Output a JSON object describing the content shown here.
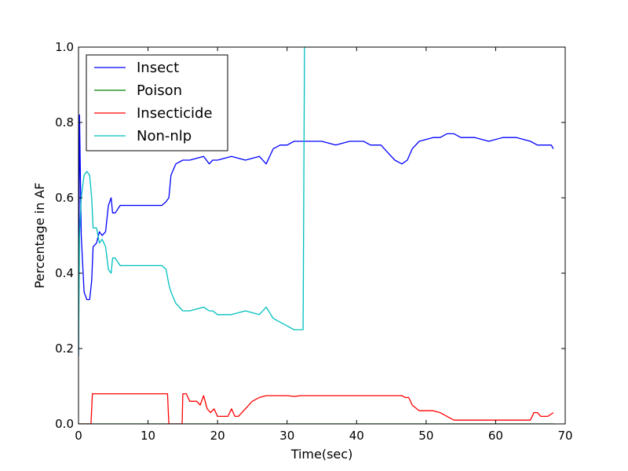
{
  "chart_data": {
    "type": "line",
    "title": "",
    "xlabel": "Time(sec)",
    "ylabel": "Percentage in AF",
    "xlim": [
      0,
      70
    ],
    "ylim": [
      0,
      1.0
    ],
    "xticks": [
      0,
      10,
      20,
      30,
      40,
      50,
      60,
      70
    ],
    "yticks": [
      0.0,
      0.2,
      0.4,
      0.6,
      0.8,
      1.0
    ],
    "xtick_labels": [
      "0",
      "10",
      "20",
      "30",
      "40",
      "50",
      "60",
      "70"
    ],
    "ytick_labels": [
      "0.0",
      "0.2",
      "0.4",
      "0.6",
      "0.8",
      "1.0"
    ],
    "grid": false,
    "legend_position": "top-left",
    "series": [
      {
        "name": "Insect",
        "color": "#0000ff",
        "points": [
          [
            0,
            0.18
          ],
          [
            0.15,
            0.82
          ],
          [
            0.4,
            0.5
          ],
          [
            0.8,
            0.35
          ],
          [
            1.2,
            0.33
          ],
          [
            1.6,
            0.33
          ],
          [
            1.9,
            0.38
          ],
          [
            2.1,
            0.47
          ],
          [
            2.6,
            0.48
          ],
          [
            3.0,
            0.51
          ],
          [
            3.4,
            0.5
          ],
          [
            3.9,
            0.51
          ],
          [
            4.3,
            0.58
          ],
          [
            4.7,
            0.6
          ],
          [
            4.9,
            0.56
          ],
          [
            5.3,
            0.56
          ],
          [
            6.0,
            0.58
          ],
          [
            8.0,
            0.58
          ],
          [
            10.0,
            0.58
          ],
          [
            11.0,
            0.58
          ],
          [
            12.0,
            0.58
          ],
          [
            12.6,
            0.59
          ],
          [
            13.0,
            0.6
          ],
          [
            13.3,
            0.66
          ],
          [
            14.0,
            0.69
          ],
          [
            15.0,
            0.7
          ],
          [
            16.0,
            0.7
          ],
          [
            18.0,
            0.71
          ],
          [
            18.8,
            0.69
          ],
          [
            19.3,
            0.7
          ],
          [
            20.0,
            0.7
          ],
          [
            22.0,
            0.71
          ],
          [
            24.0,
            0.7
          ],
          [
            26.0,
            0.71
          ],
          [
            27.0,
            0.69
          ],
          [
            28.0,
            0.73
          ],
          [
            29.0,
            0.74
          ],
          [
            30.0,
            0.74
          ],
          [
            31.0,
            0.75
          ],
          [
            33.0,
            0.75
          ],
          [
            35.0,
            0.75
          ],
          [
            37.0,
            0.74
          ],
          [
            39.0,
            0.75
          ],
          [
            41.0,
            0.75
          ],
          [
            42.0,
            0.74
          ],
          [
            43.5,
            0.74
          ],
          [
            44.5,
            0.72
          ],
          [
            45.5,
            0.7
          ],
          [
            46.5,
            0.69
          ],
          [
            47.3,
            0.7
          ],
          [
            48.0,
            0.73
          ],
          [
            49.0,
            0.75
          ],
          [
            51.0,
            0.76
          ],
          [
            52.0,
            0.76
          ],
          [
            53.0,
            0.77
          ],
          [
            54.0,
            0.77
          ],
          [
            55.0,
            0.76
          ],
          [
            57.0,
            0.76
          ],
          [
            59.0,
            0.75
          ],
          [
            61.0,
            0.76
          ],
          [
            63.0,
            0.76
          ],
          [
            65.0,
            0.75
          ],
          [
            66.0,
            0.74
          ],
          [
            67.0,
            0.74
          ],
          [
            68.0,
            0.74
          ],
          [
            68.3,
            0.73
          ]
        ]
      },
      {
        "name": "Poison",
        "color": "#008000",
        "points": [
          [
            0,
            0.0
          ],
          [
            68.3,
            0.0
          ]
        ]
      },
      {
        "name": "Insecticide",
        "color": "#ff0000",
        "points": [
          [
            0,
            0.0
          ],
          [
            1.8,
            0.0
          ],
          [
            2.0,
            0.08
          ],
          [
            5.0,
            0.08
          ],
          [
            10.0,
            0.08
          ],
          [
            12.8,
            0.08
          ],
          [
            13.0,
            0.0
          ],
          [
            14.9,
            0.0
          ],
          [
            15.0,
            0.08
          ],
          [
            15.5,
            0.08
          ],
          [
            16.0,
            0.06
          ],
          [
            17.0,
            0.06
          ],
          [
            17.5,
            0.05
          ],
          [
            18.0,
            0.075
          ],
          [
            18.5,
            0.04
          ],
          [
            19.0,
            0.03
          ],
          [
            19.5,
            0.04
          ],
          [
            20.0,
            0.02
          ],
          [
            21.5,
            0.02
          ],
          [
            22.0,
            0.04
          ],
          [
            22.5,
            0.02
          ],
          [
            23.0,
            0.02
          ],
          [
            24.0,
            0.04
          ],
          [
            25.0,
            0.06
          ],
          [
            26.0,
            0.07
          ],
          [
            27.0,
            0.075
          ],
          [
            30.0,
            0.075
          ],
          [
            31.0,
            0.073
          ],
          [
            32.0,
            0.075
          ],
          [
            35.0,
            0.075
          ],
          [
            40.0,
            0.075
          ],
          [
            45.0,
            0.075
          ],
          [
            46.5,
            0.075
          ],
          [
            47.0,
            0.07
          ],
          [
            47.5,
            0.07
          ],
          [
            48.0,
            0.05
          ],
          [
            49.0,
            0.035
          ],
          [
            51.0,
            0.035
          ],
          [
            52.0,
            0.03
          ],
          [
            53.0,
            0.02
          ],
          [
            54.0,
            0.01
          ],
          [
            57.0,
            0.01
          ],
          [
            60.0,
            0.01
          ],
          [
            63.0,
            0.01
          ],
          [
            65.0,
            0.01
          ],
          [
            65.5,
            0.03
          ],
          [
            66.0,
            0.03
          ],
          [
            66.5,
            0.02
          ],
          [
            67.5,
            0.02
          ],
          [
            68.3,
            0.03
          ]
        ]
      },
      {
        "name": "Non-nlp",
        "color": "#00bfbf",
        "points": [
          [
            0,
            0.18
          ],
          [
            0.15,
            0.5
          ],
          [
            0.4,
            0.6
          ],
          [
            0.8,
            0.66
          ],
          [
            1.2,
            0.67
          ],
          [
            1.6,
            0.66
          ],
          [
            1.9,
            0.6
          ],
          [
            2.1,
            0.52
          ],
          [
            2.6,
            0.52
          ],
          [
            3.0,
            0.48
          ],
          [
            3.4,
            0.49
          ],
          [
            3.9,
            0.47
          ],
          [
            4.3,
            0.41
          ],
          [
            4.7,
            0.4
          ],
          [
            4.9,
            0.44
          ],
          [
            5.3,
            0.44
          ],
          [
            6.0,
            0.42
          ],
          [
            8.0,
            0.42
          ],
          [
            10.0,
            0.42
          ],
          [
            11.0,
            0.42
          ],
          [
            12.0,
            0.42
          ],
          [
            12.6,
            0.41
          ],
          [
            13.0,
            0.37
          ],
          [
            13.3,
            0.35
          ],
          [
            14.0,
            0.32
          ],
          [
            15.0,
            0.3
          ],
          [
            16.0,
            0.3
          ],
          [
            18.0,
            0.31
          ],
          [
            18.8,
            0.3
          ],
          [
            19.3,
            0.3
          ],
          [
            20.0,
            0.29
          ],
          [
            22.0,
            0.29
          ],
          [
            24.0,
            0.3
          ],
          [
            26.0,
            0.29
          ],
          [
            27.0,
            0.31
          ],
          [
            28.0,
            0.28
          ],
          [
            29.0,
            0.27
          ],
          [
            30.0,
            0.26
          ],
          [
            31.0,
            0.25
          ],
          [
            32.0,
            0.25
          ],
          [
            32.3,
            0.25
          ],
          [
            32.5,
            1.0
          ]
        ]
      }
    ]
  }
}
